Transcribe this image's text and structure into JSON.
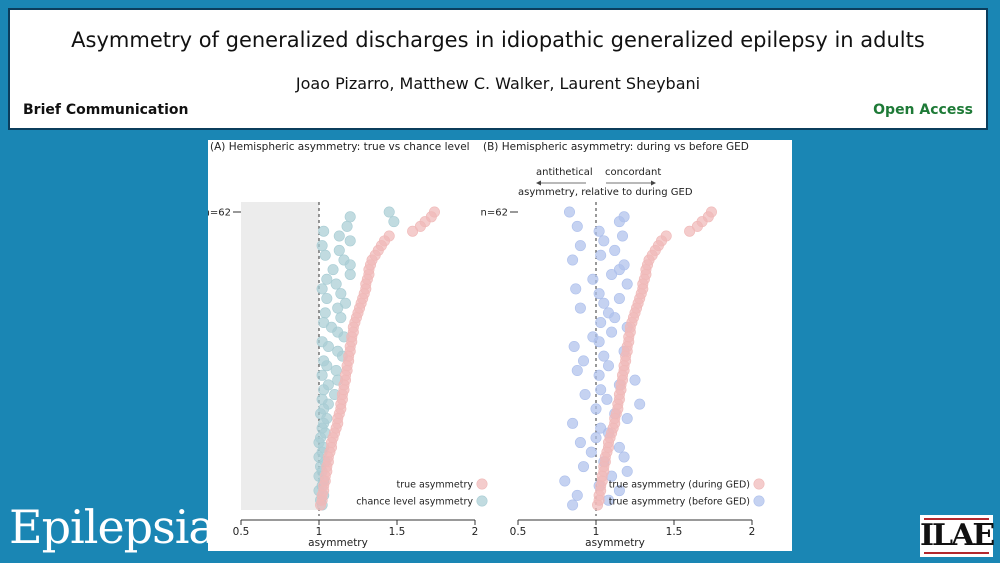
{
  "header": {
    "title": "Asymmetry of generalized discharges in idiopathic generalized epilepsy in adults",
    "authors": "Joao Pizarro, Matthew C. Walker, Laurent Sheybani",
    "article_type": "Brief Communication",
    "access": "Open Access"
  },
  "branding": {
    "journal": "Epilepsia",
    "society": "ILAE"
  },
  "colors": {
    "background": "#1a86b4",
    "true_point": "#f0b9b8",
    "chance_point": "#a9cdd4",
    "before_point": "#aec0ec",
    "open_access": "#1e7a37"
  },
  "chart_data": [
    {
      "type": "scatter",
      "panel": "A",
      "title": "(A) Hemispheric asymmetry: true vs chance level",
      "xlabel": "asymmetry",
      "ylabel_marker": "n=62",
      "xlim": [
        0.5,
        2
      ],
      "xticks": [
        "0.5",
        "1",
        "1.5",
        "2"
      ],
      "reference_line": 1,
      "shaded_region": [
        0.5,
        1
      ],
      "legend_position": "bottom-right",
      "series": [
        {
          "name": "true asymmetry",
          "color_key": "true_point",
          "values": [
            1.74,
            1.72,
            1.68,
            1.65,
            1.6,
            1.45,
            1.42,
            1.4,
            1.38,
            1.36,
            1.34,
            1.33,
            1.32,
            1.32,
            1.31,
            1.3,
            1.3,
            1.29,
            1.28,
            1.27,
            1.26,
            1.25,
            1.24,
            1.23,
            1.22,
            1.22,
            1.21,
            1.21,
            1.2,
            1.2,
            1.19,
            1.19,
            1.18,
            1.18,
            1.17,
            1.17,
            1.16,
            1.16,
            1.15,
            1.15,
            1.14,
            1.14,
            1.13,
            1.12,
            1.12,
            1.11,
            1.1,
            1.09,
            1.08,
            1.08,
            1.07,
            1.06,
            1.06,
            1.05,
            1.05,
            1.04,
            1.04,
            1.03,
            1.03,
            1.02,
            1.02,
            1.01
          ]
        },
        {
          "name": "chance level asymmetry",
          "color_key": "chance_point",
          "values": [
            1.45,
            1.2,
            1.48,
            1.18,
            1.03,
            1.13,
            1.2,
            1.02,
            1.13,
            1.04,
            1.16,
            1.2,
            1.09,
            1.2,
            1.05,
            1.11,
            1.02,
            1.14,
            1.05,
            1.17,
            1.12,
            1.04,
            1.14,
            1.03,
            1.08,
            1.12,
            1.16,
            1.02,
            1.06,
            1.12,
            1.15,
            1.03,
            1.05,
            1.11,
            1.02,
            1.12,
            1.06,
            1.03,
            1.1,
            1.02,
            1.06,
            1.03,
            1.01,
            1.05,
            1.03,
            1.02,
            1.04,
            1.01,
            1.0,
            1.03,
            1.02,
            1.0,
            1.04,
            1.01,
            1.02,
            1.0,
            1.03,
            1.02,
            1.0,
            1.03,
            1.01,
            1.02
          ]
        }
      ]
    },
    {
      "type": "scatter",
      "panel": "B",
      "title": "(B) Hemispheric asymmetry: during vs before GED",
      "xlabel": "asymmetry",
      "ylabel_marker": "n=62",
      "xlim": [
        0.5,
        2
      ],
      "xticks": [
        "0.5",
        "1",
        "1.5",
        "2"
      ],
      "reference_line": 1,
      "legend_position": "bottom-right",
      "annotations": {
        "left_arrow": "antithetical",
        "right_arrow": "concordant",
        "caption": "asymmetry, relative to during GED"
      },
      "series": [
        {
          "name": "true asymmetry (during GED)",
          "color_key": "true_point",
          "values": [
            1.74,
            1.72,
            1.68,
            1.65,
            1.6,
            1.45,
            1.42,
            1.4,
            1.38,
            1.36,
            1.34,
            1.33,
            1.32,
            1.32,
            1.31,
            1.3,
            1.3,
            1.29,
            1.28,
            1.27,
            1.26,
            1.25,
            1.24,
            1.23,
            1.22,
            1.22,
            1.21,
            1.21,
            1.2,
            1.2,
            1.19,
            1.19,
            1.18,
            1.18,
            1.17,
            1.17,
            1.16,
            1.16,
            1.15,
            1.15,
            1.14,
            1.14,
            1.13,
            1.12,
            1.12,
            1.11,
            1.1,
            1.09,
            1.08,
            1.08,
            1.07,
            1.06,
            1.06,
            1.05,
            1.05,
            1.04,
            1.04,
            1.03,
            1.03,
            1.02,
            1.02,
            1.01
          ]
        },
        {
          "name": "true asymmetry (before GED)",
          "color_key": "before_point",
          "values": [
            0.83,
            1.18,
            1.15,
            0.88,
            1.02,
            1.17,
            1.05,
            0.9,
            1.12,
            1.03,
            0.85,
            1.18,
            1.15,
            1.1,
            0.98,
            1.2,
            0.87,
            1.02,
            1.15,
            1.05,
            0.9,
            1.08,
            1.12,
            1.03,
            1.2,
            1.1,
            0.98,
            1.02,
            0.86,
            1.18,
            1.05,
            0.92,
            1.08,
            0.88,
            1.02,
            1.25,
            1.15,
            1.03,
            0.93,
            1.07,
            1.28,
            1.0,
            1.12,
            1.2,
            0.85,
            1.03,
            1.08,
            1.0,
            0.9,
            1.15,
            0.97,
            1.18,
            1.05,
            0.92,
            1.2,
            1.1,
            0.8,
            1.02,
            1.15,
            0.88,
            1.08,
            0.85
          ]
        }
      ]
    }
  ]
}
